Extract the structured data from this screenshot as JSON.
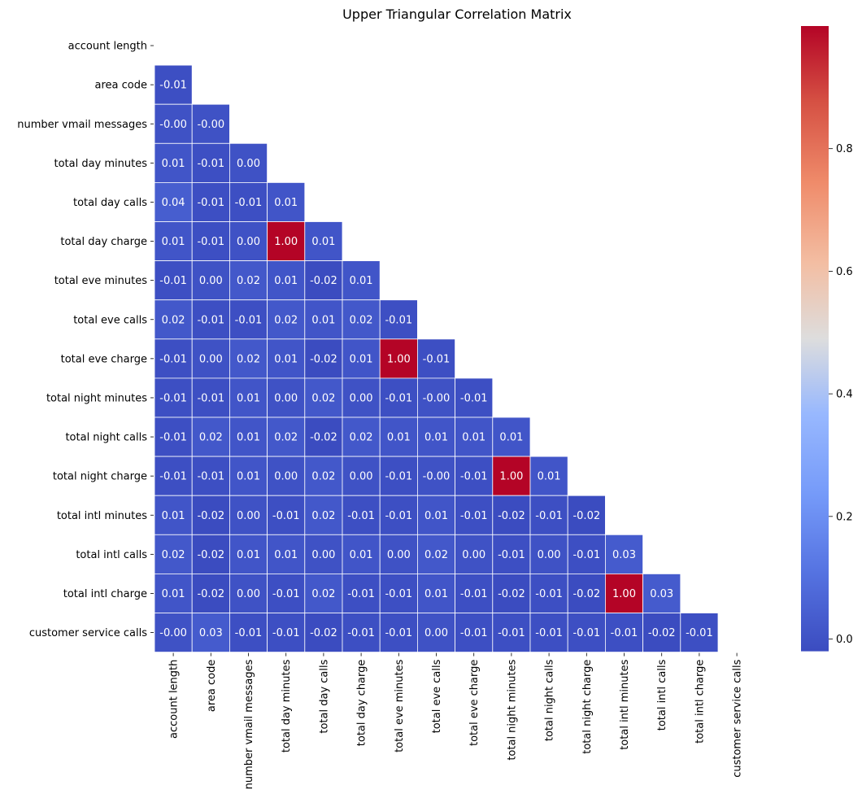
{
  "chart_data": {
    "type": "heatmap",
    "title": "Upper Triangular Correlation Matrix",
    "xlabel": "",
    "ylabel": "",
    "mask": "upper triangle including diagonal",
    "colormap": "coolwarm",
    "vmin": -0.02,
    "vmax": 1.0,
    "value_format": "0.00",
    "labels": [
      "account length",
      "area code",
      "number vmail messages",
      "total day minutes",
      "total day calls",
      "total day charge",
      "total eve minutes",
      "total eve calls",
      "total eve charge",
      "total night minutes",
      "total night calls",
      "total night charge",
      "total intl minutes",
      "total intl calls",
      "total intl charge",
      "customer service calls"
    ],
    "lower_triangle": [
      [],
      [
        "-0.01"
      ],
      [
        "-0.00",
        "-0.00"
      ],
      [
        "0.01",
        "-0.01",
        "0.00"
      ],
      [
        "0.04",
        "-0.01",
        "-0.01",
        "0.01"
      ],
      [
        "0.01",
        "-0.01",
        "0.00",
        "1.00",
        "0.01"
      ],
      [
        "-0.01",
        "0.00",
        "0.02",
        "0.01",
        "-0.02",
        "0.01"
      ],
      [
        "0.02",
        "-0.01",
        "-0.01",
        "0.02",
        "0.01",
        "0.02",
        "-0.01"
      ],
      [
        "-0.01",
        "0.00",
        "0.02",
        "0.01",
        "-0.02",
        "0.01",
        "1.00",
        "-0.01"
      ],
      [
        "-0.01",
        "-0.01",
        "0.01",
        "0.00",
        "0.02",
        "0.00",
        "-0.01",
        "-0.00",
        "-0.01"
      ],
      [
        "-0.01",
        "0.02",
        "0.01",
        "0.02",
        "-0.02",
        "0.02",
        "0.01",
        "0.01",
        "0.01",
        "0.01"
      ],
      [
        "-0.01",
        "-0.01",
        "0.01",
        "0.00",
        "0.02",
        "0.00",
        "-0.01",
        "-0.00",
        "-0.01",
        "1.00",
        "0.01"
      ],
      [
        "0.01",
        "-0.02",
        "0.00",
        "-0.01",
        "0.02",
        "-0.01",
        "-0.01",
        "0.01",
        "-0.01",
        "-0.02",
        "-0.01",
        "-0.02"
      ],
      [
        "0.02",
        "-0.02",
        "0.01",
        "0.01",
        "0.00",
        "0.01",
        "0.00",
        "0.02",
        "0.00",
        "-0.01",
        "0.00",
        "-0.01",
        "0.03"
      ],
      [
        "0.01",
        "-0.02",
        "0.00",
        "-0.01",
        "0.02",
        "-0.01",
        "-0.01",
        "0.01",
        "-0.01",
        "-0.02",
        "-0.01",
        "-0.02",
        "1.00",
        "0.03"
      ],
      [
        "-0.00",
        "0.03",
        "-0.01",
        "-0.01",
        "-0.02",
        "-0.01",
        "-0.01",
        "0.00",
        "-0.01",
        "-0.01",
        "-0.01",
        "-0.01",
        "-0.01",
        "-0.02",
        "-0.01"
      ]
    ],
    "colorbar": {
      "ticks": [
        "0.0",
        "0.2",
        "0.4",
        "0.6",
        "0.8"
      ]
    }
  }
}
